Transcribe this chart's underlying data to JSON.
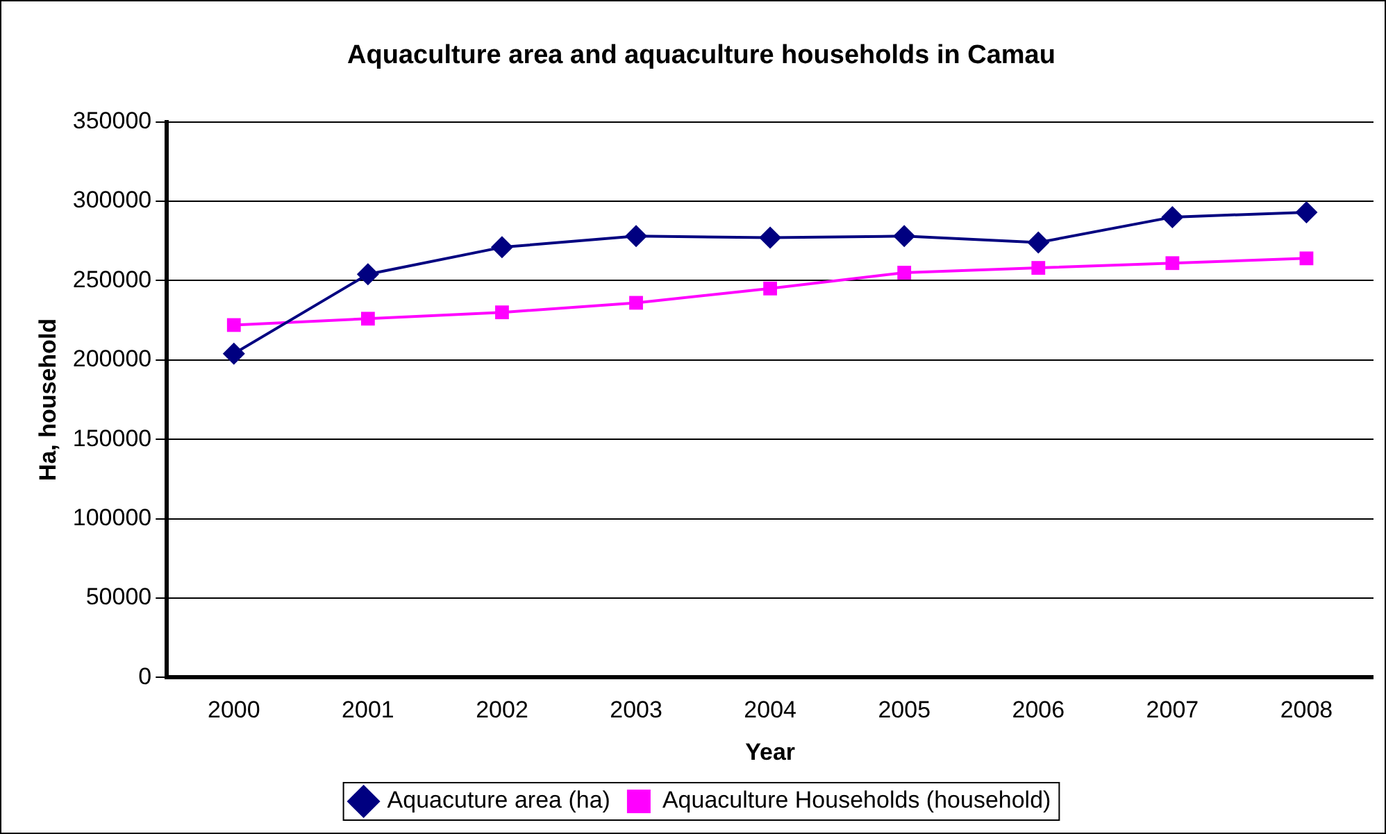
{
  "chart_data": {
    "type": "line",
    "title": "Aquaculture area and aquaculture households in Camau",
    "xlabel": "Year",
    "ylabel": "Ha, household",
    "categories": [
      "2000",
      "2001",
      "2002",
      "2003",
      "2004",
      "2005",
      "2006",
      "2007",
      "2008"
    ],
    "series": [
      {
        "name": "Aquacuture area (ha)",
        "color": "#000080",
        "marker": "diamond",
        "values": [
          204000,
          254000,
          271000,
          278000,
          277000,
          278000,
          274000,
          290000,
          293000
        ]
      },
      {
        "name": "Aquaculture Households (household)",
        "color": "#ff00ff",
        "marker": "square",
        "values": [
          222000,
          226000,
          230000,
          236000,
          245000,
          255000,
          258000,
          261000,
          264000
        ]
      }
    ],
    "ylim": [
      0,
      350000
    ],
    "yticks": [
      0,
      50000,
      100000,
      150000,
      200000,
      250000,
      300000,
      350000
    ],
    "grid": "y",
    "legend": "bottom",
    "line_style": "solid"
  }
}
